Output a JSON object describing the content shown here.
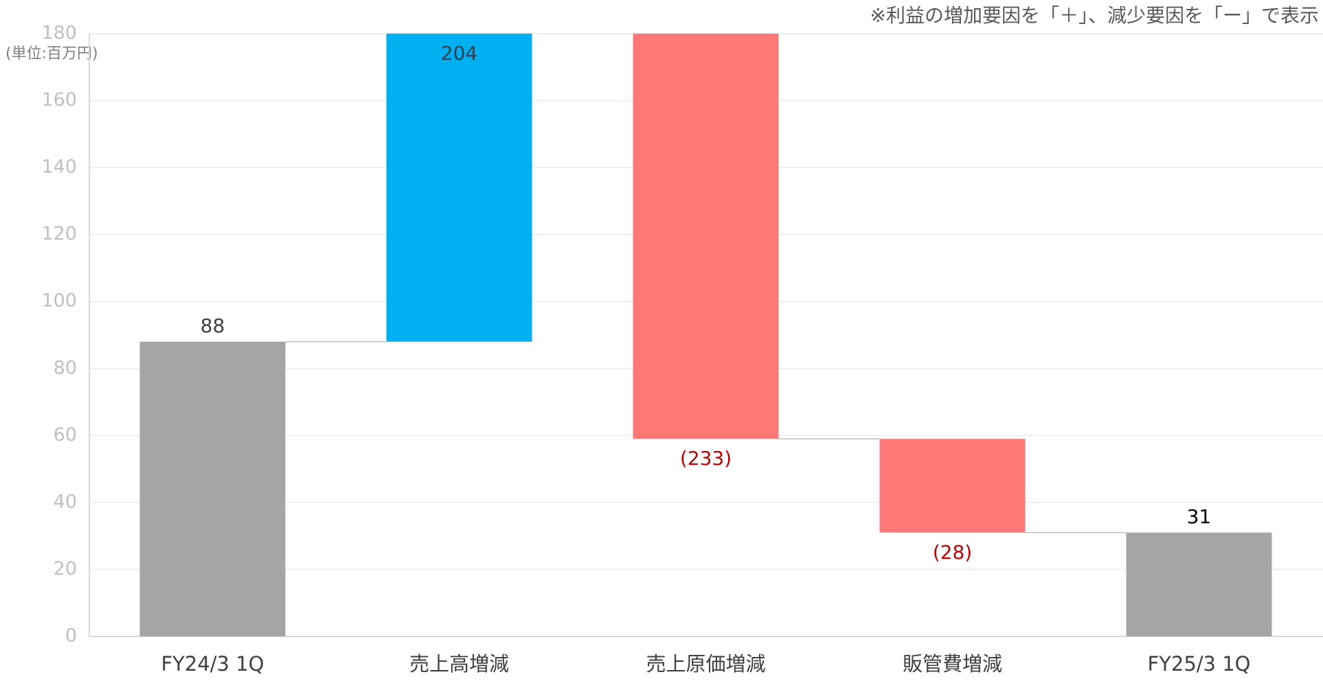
{
  "chart_data": {
    "type": "waterfall",
    "note": "※利益の増加要因を「＋」、減少要因を「ー」で表示",
    "unit_label": "(単位:百万円)",
    "categories": [
      "FY24/3  1Q",
      "売上高増減",
      "売上原価増減",
      "販管費増減",
      "FY25/3  1Q"
    ],
    "values": [
      88,
      204,
      -233,
      -28,
      31
    ],
    "value_labels": [
      "88",
      "204",
      "(233)",
      "(28)",
      "31"
    ],
    "measure": [
      "absolute",
      "relative",
      "relative",
      "relative",
      "absolute"
    ],
    "colors": [
      "#a5a5a5",
      "#00b0f0",
      "#ff7878",
      "#ff7878",
      "#a5a5a5"
    ],
    "label_colors": [
      "#404040",
      "#333f50",
      "#c00000",
      "#c00000",
      "#000000"
    ],
    "ylim": [
      0,
      180
    ],
    "yticks": [
      0,
      20,
      40,
      60,
      80,
      100,
      120,
      140,
      160,
      180
    ],
    "grid": true
  }
}
